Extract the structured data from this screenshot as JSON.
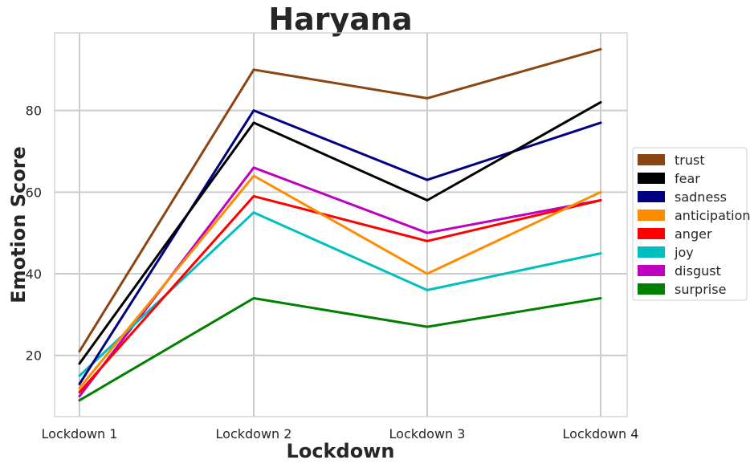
{
  "chart_data": {
    "type": "line",
    "title": "Haryana",
    "xlabel": "Lockdown",
    "ylabel": "Emotion Score",
    "categories": [
      "Lockdown 1",
      "Lockdown 2",
      "Lockdown 3",
      "Lockdown 4"
    ],
    "ylim": [
      5,
      99
    ],
    "yticks": [
      20,
      40,
      60,
      80
    ],
    "grid": true,
    "legend_position": "center-right",
    "series": [
      {
        "name": "trust",
        "color": "#8B4513",
        "values": [
          21,
          90,
          83,
          95
        ]
      },
      {
        "name": "fear",
        "color": "#000000",
        "values": [
          18,
          77,
          58,
          82
        ]
      },
      {
        "name": "sadness",
        "color": "#000080",
        "values": [
          13,
          80,
          63,
          77
        ]
      },
      {
        "name": "anticipation",
        "color": "#FF8C00",
        "values": [
          12,
          64,
          40,
          60
        ]
      },
      {
        "name": "anger",
        "color": "#FF0000",
        "values": [
          11,
          59,
          48,
          58
        ]
      },
      {
        "name": "joy",
        "color": "#00BFBF",
        "values": [
          15,
          55,
          36,
          45
        ]
      },
      {
        "name": "disgust",
        "color": "#BF00BF",
        "values": [
          10,
          66,
          50,
          58
        ]
      },
      {
        "name": "surprise",
        "color": "#008000",
        "values": [
          9,
          34,
          27,
          34
        ]
      }
    ]
  }
}
